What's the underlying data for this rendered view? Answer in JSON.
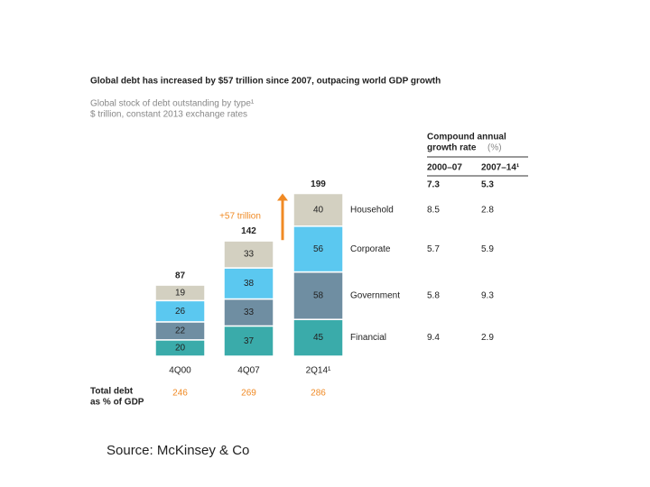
{
  "chart_data": {
    "type": "bar",
    "stacked": true,
    "title": "Global debt has increased by $57 trillion since 2007, outpacing world GDP growth",
    "subtitle": "Global stock of debt outstanding by type¹",
    "unit_note": "$ trillion, constant 2013 exchange rates",
    "categories": [
      "4Q00",
      "4Q07",
      "2Q14¹"
    ],
    "series": [
      {
        "name": "Financial",
        "color": "#3aabaa",
        "values": [
          20,
          37,
          45
        ]
      },
      {
        "name": "Government",
        "color": "#6f8ea2",
        "values": [
          22,
          33,
          58
        ]
      },
      {
        "name": "Corporate",
        "color": "#5bc8f0",
        "values": [
          26,
          38,
          56
        ]
      },
      {
        "name": "Household",
        "color": "#d3d0c1",
        "values": [
          19,
          33,
          40
        ]
      }
    ],
    "totals": [
      87,
      142,
      199
    ],
    "annotation": "+57 trillion",
    "annotation_color": "#f08a24",
    "gdp": {
      "label_lines": [
        "Total debt",
        "as % of GDP"
      ],
      "values": [
        246,
        269,
        286
      ]
    },
    "growth_table": {
      "title_lines": [
        "Compound annual",
        "growth rate"
      ],
      "unit": "(%)",
      "columns": [
        "2000–07",
        "2007–14¹"
      ],
      "total": [
        7.3,
        5.3
      ],
      "rows": [
        [
          9.4,
          2.9
        ],
        [
          5.8,
          9.3
        ],
        [
          5.7,
          5.9
        ],
        [
          8.5,
          2.8
        ]
      ]
    }
  },
  "source": "Source: McKinsey & Co"
}
